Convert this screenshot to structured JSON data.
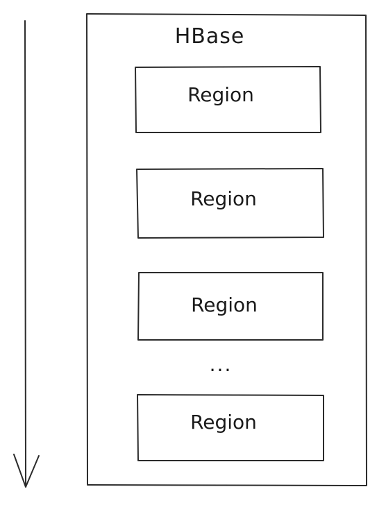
{
  "diagram": {
    "title": "HBase",
    "regions": [
      "Region",
      "Region",
      "Region",
      "Region"
    ],
    "ellipsis": "..."
  }
}
